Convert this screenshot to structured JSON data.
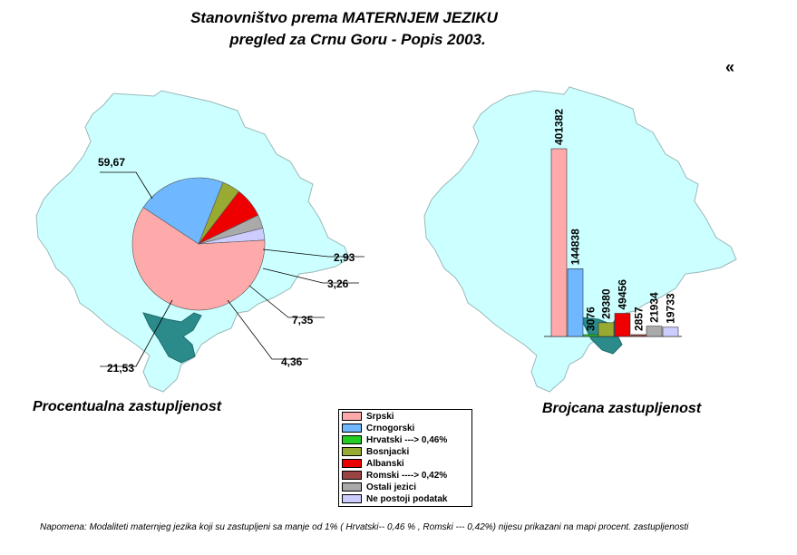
{
  "title_line1": "Stanovništvo prema MATERNJEM JEZIKU",
  "title_line2": "pregled za Crnu Goru - Popis 2003.",
  "nav_symbol": "«",
  "caption_left": "Procentualna zastupljenost",
  "caption_right": "Brojcana zastupljenost",
  "note": "Napomena: Modaliteti maternjeg jezika koji su zastupljeni sa manje od 1%  ( Hrvatski-- 0,46 % , Romski --- 0,42%) nijesu prikazani na mapi procent. zastupljenosti",
  "colors": {
    "map": "#ccffff",
    "map_stroke": "#9ab8b8",
    "highlight": "#2b8a8a",
    "srpski": "#ffaaaa",
    "crnogorski": "#6fb7ff",
    "hrvatski": "#22cc22",
    "bosnjacki": "#99aa33",
    "albanski": "#ee0000",
    "romski": "#994444",
    "ostali": "#aaaaaa",
    "nepostoji": "#ccccff"
  },
  "legend": [
    {
      "label": "Srpski",
      "color": "#ffaaaa"
    },
    {
      "label": "Crnogorski",
      "color": "#6fb7ff"
    },
    {
      "label": "Hrvatski ---> 0,46%",
      "color": "#22cc22"
    },
    {
      "label": "Bosnjacki",
      "color": "#99aa33"
    },
    {
      "label": "Albanski",
      "color": "#ee0000"
    },
    {
      "label": "Romski ----> 0,42%",
      "color": "#994444"
    },
    {
      "label": "Ostali jezici",
      "color": "#aaaaaa"
    },
    {
      "label": "Ne postoji podatak",
      "color": "#ccccff"
    }
  ],
  "chart_data": [
    {
      "type": "pie",
      "title": "Procentualna zastupljenost",
      "slices": [
        {
          "label": "Srpski",
          "value": 59.67,
          "text": "59,67",
          "color": "#ffaaaa"
        },
        {
          "label": "Crnogorski",
          "value": 21.53,
          "text": "21,53",
          "color": "#6fb7ff"
        },
        {
          "label": "Bosnjacki",
          "value": 4.36,
          "text": "4,36",
          "color": "#99aa33"
        },
        {
          "label": "Albanski",
          "value": 7.35,
          "text": "7,35",
          "color": "#ee0000"
        },
        {
          "label": "Ostali jezici",
          "value": 3.26,
          "text": "3,26",
          "color": "#aaaaaa"
        },
        {
          "label": "Ne postoji podatak",
          "value": 2.93,
          "text": "2,93",
          "color": "#ccccff"
        }
      ]
    },
    {
      "type": "bar",
      "title": "Brojcana zastupljenost",
      "categories": [
        "Srpski",
        "Crnogorski",
        "Hrvatski",
        "Bosnjacki",
        "Albanski",
        "Romski",
        "Ostali jezici",
        "Ne postoji podatak"
      ],
      "values": [
        401382,
        144838,
        3076,
        29380,
        49456,
        2857,
        21934,
        19733
      ],
      "labels": [
        "401382",
        "144838",
        "3076",
        "29380",
        "49456",
        "2857",
        "21934",
        "19733"
      ],
      "colors": [
        "#ffaaaa",
        "#6fb7ff",
        "#22cc22",
        "#99aa33",
        "#ee0000",
        "#994444",
        "#aaaaaa",
        "#ccccff"
      ]
    }
  ]
}
